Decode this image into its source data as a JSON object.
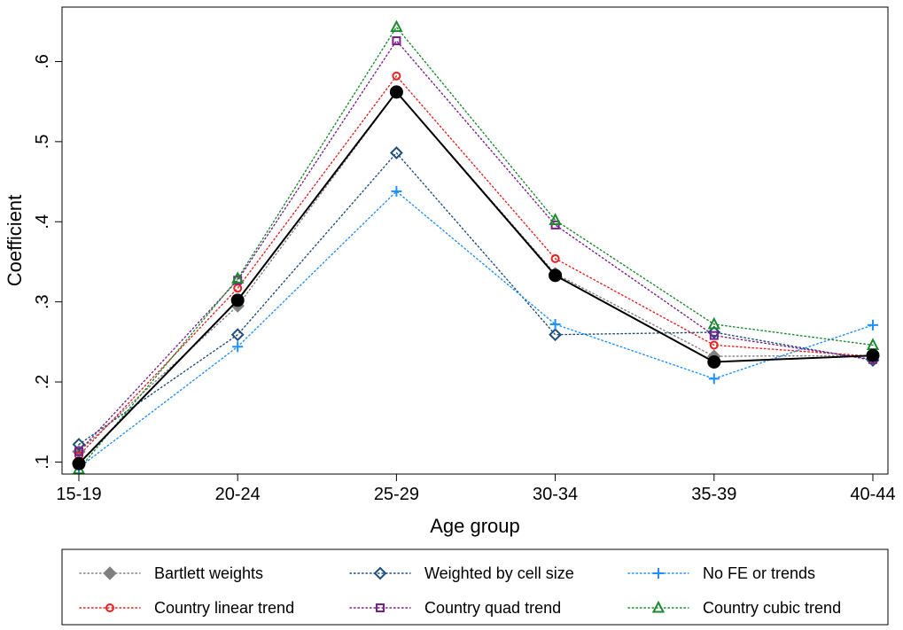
{
  "chart_data": {
    "type": "line",
    "title": "",
    "xlabel": "Age group",
    "ylabel": "Coefficient",
    "categories": [
      "15-19",
      "20-24",
      "25-29",
      "30-34",
      "35-39",
      "40-44"
    ],
    "ylim": [
      0.085,
      0.668
    ],
    "yticks": [
      0.1,
      0.2,
      0.3,
      0.4,
      0.5,
      0.6
    ],
    "ytick_labels": [
      ".1",
      ".2",
      ".3",
      ".4",
      ".5",
      ".6"
    ],
    "grid": false,
    "legend_position": "bottom",
    "main_series": {
      "name": "",
      "color": "#000000",
      "marker": "filled-circle",
      "values": [
        0.098,
        0.302,
        0.562,
        0.333,
        0.225,
        0.233
      ]
    },
    "series": [
      {
        "name": "Bartlett weights",
        "color": "#808080",
        "marker": "filled-diamond",
        "values": [
          0.113,
          0.295,
          0.562,
          0.335,
          0.232,
          0.233
        ]
      },
      {
        "name": "Weighted by cell size",
        "color": "#1f4e79",
        "marker": "hollow-diamond",
        "values": [
          0.122,
          0.259,
          0.486,
          0.259,
          0.262,
          0.227
        ]
      },
      {
        "name": "No FE or trends",
        "color": "#1e90ff",
        "marker": "plus",
        "values": [
          0.093,
          0.244,
          0.438,
          0.272,
          0.204,
          0.271
        ]
      },
      {
        "name": "Country linear trend",
        "color": "#e8221f",
        "marker": "hollow-circle",
        "values": [
          0.108,
          0.317,
          0.582,
          0.354,
          0.246,
          0.232
        ]
      },
      {
        "name": "Country quad trend",
        "color": "#7b1f8c",
        "marker": "hollow-square",
        "values": [
          0.113,
          0.327,
          0.626,
          0.396,
          0.258,
          0.228
        ]
      },
      {
        "name": "Country cubic trend",
        "color": "#1b8a2e",
        "marker": "hollow-triangle",
        "values": [
          0.091,
          0.329,
          0.643,
          0.402,
          0.272,
          0.246
        ]
      }
    ]
  }
}
